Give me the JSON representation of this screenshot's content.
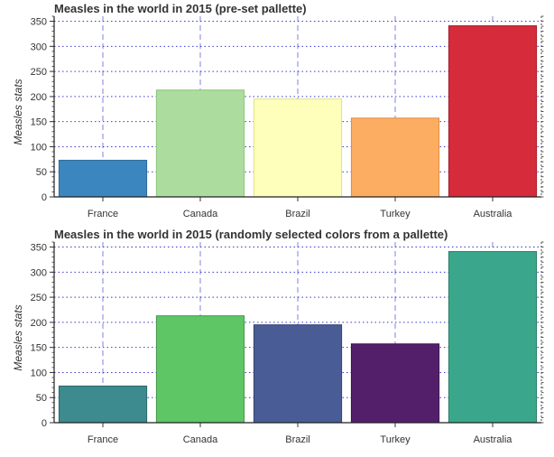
{
  "chart_data": [
    {
      "type": "bar",
      "title": "Measles in the world in 2015 (pre-set pallette)",
      "xlabel": "",
      "ylabel": "Measles stats",
      "categories": [
        "France",
        "Canada",
        "Brazil",
        "Turkey",
        "Australia"
      ],
      "values": [
        73,
        213,
        195,
        157,
        341
      ],
      "colors": [
        "#3b86be",
        "#addd9e",
        "#ffffbc",
        "#fdad62",
        "#d52b3a"
      ],
      "edge_colors": [
        "#2d6a99",
        "#8cc47d",
        "#e0e08a",
        "#e08c45",
        "#a51f2c"
      ],
      "ylim": [
        0,
        360
      ],
      "yticks": [
        0,
        50,
        100,
        150,
        200,
        250,
        300,
        350
      ],
      "grid": true
    },
    {
      "type": "bar",
      "title": "Measles in the world in 2015 (randomly selected colors from a pallette)",
      "xlabel": "",
      "ylabel": "Measles stats",
      "categories": [
        "France",
        "Canada",
        "Brazil",
        "Turkey",
        "Australia"
      ],
      "values": [
        73,
        213,
        195,
        157,
        341
      ],
      "colors": [
        "#3d8a8f",
        "#5fc666",
        "#4a5c96",
        "#541f6a",
        "#3aa78c"
      ],
      "edge_colors": [
        "#2c6669",
        "#45984b",
        "#34426f",
        "#3b154b",
        "#2a7c67"
      ],
      "ylim": [
        0,
        360
      ],
      "yticks": [
        0,
        50,
        100,
        150,
        200,
        250,
        300,
        350
      ],
      "grid": true
    }
  ]
}
